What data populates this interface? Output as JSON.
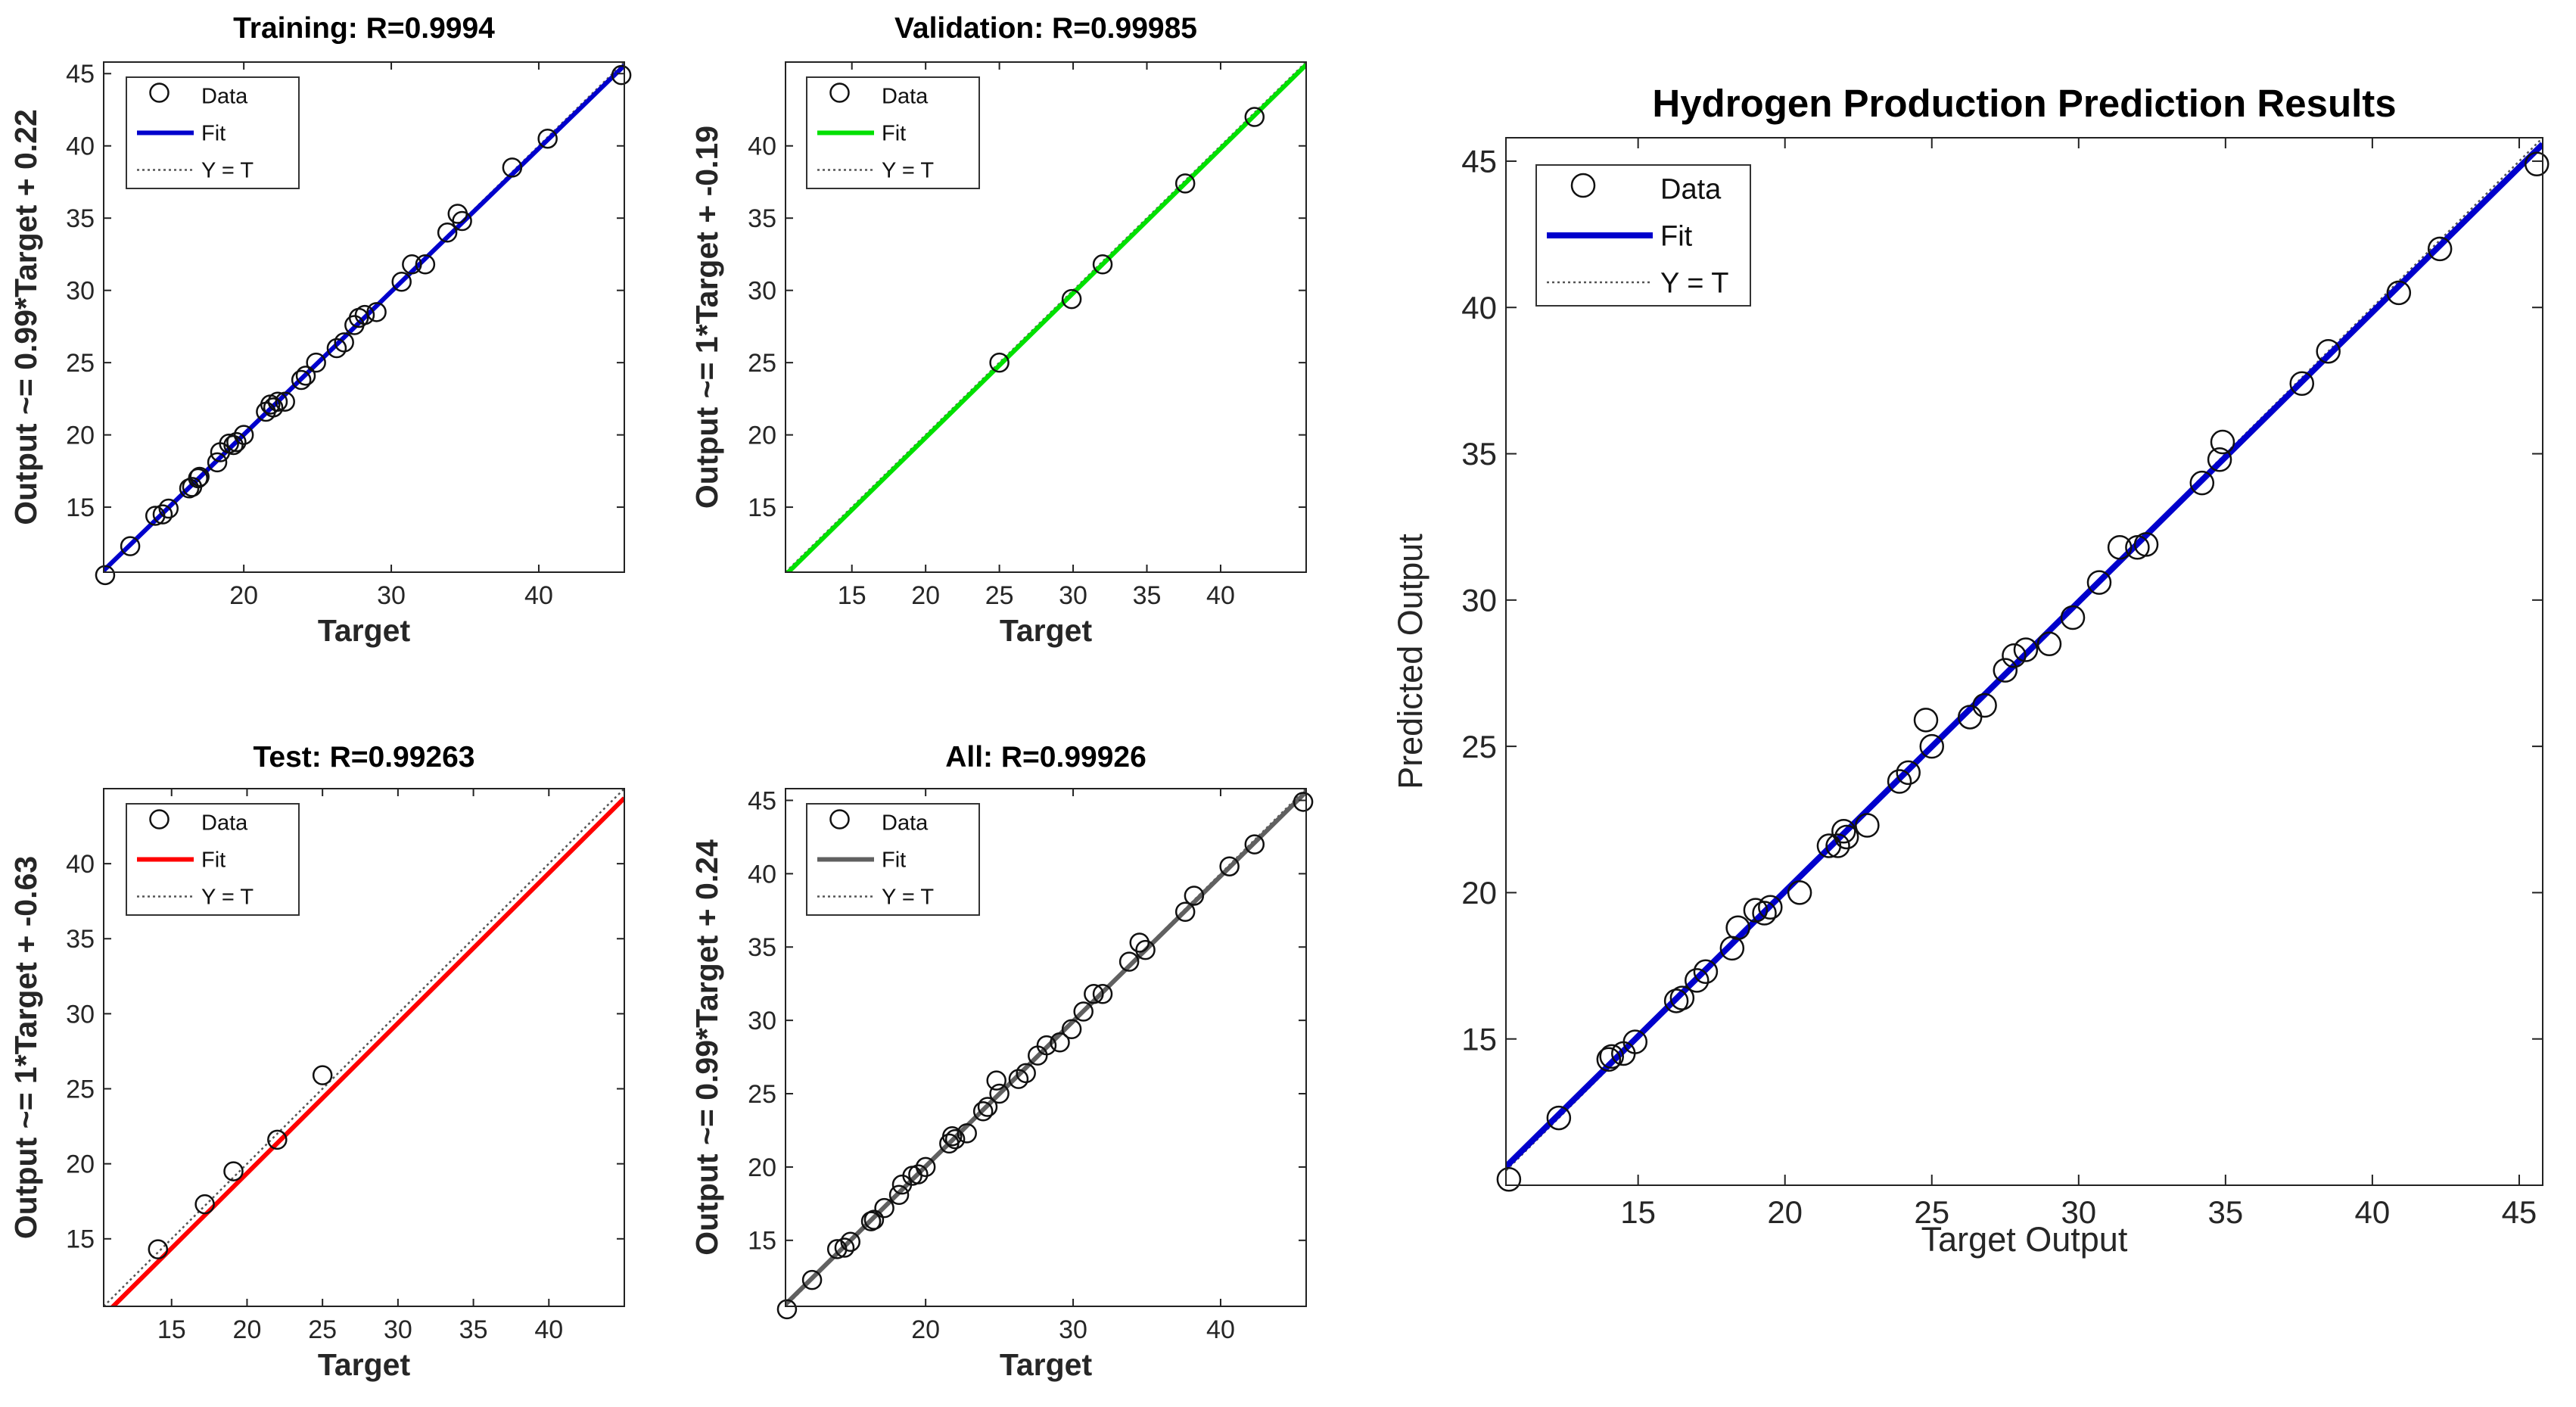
{
  "chart_data": [
    {
      "type": "scatter",
      "title": "Training: R=0.9994",
      "xlabel": "Target",
      "ylabel": "Output ~= 0.99*Target + 0.22",
      "xlim": [
        10.5,
        45.8
      ],
      "ylim": [
        10.5,
        45.8
      ],
      "xticks": [
        20,
        30,
        40
      ],
      "yticks": [
        15,
        20,
        25,
        30,
        35,
        40,
        45
      ],
      "fit": {
        "slope": 0.99,
        "intercept": 0.22,
        "color": "#0000cc"
      },
      "legend": {
        "data": "Data",
        "fit": "Fit",
        "identity": "Y = T"
      },
      "x": [
        10.6,
        12.3,
        14.0,
        14.5,
        14.9,
        16.3,
        16.5,
        16.9,
        17.0,
        18.2,
        18.4,
        19.0,
        19.3,
        19.5,
        20.0,
        21.5,
        21.8,
        22.0,
        22.3,
        22.8,
        23.9,
        24.2,
        24.9,
        26.3,
        26.8,
        27.5,
        27.8,
        28.2,
        29.0,
        30.7,
        31.4,
        32.3,
        33.8,
        34.5,
        34.8,
        38.2,
        40.6,
        45.6
      ],
      "y": [
        10.3,
        12.3,
        14.4,
        14.5,
        14.9,
        16.3,
        16.4,
        17.0,
        17.1,
        18.1,
        18.8,
        19.4,
        19.3,
        19.5,
        20.0,
        21.6,
        22.1,
        21.9,
        22.3,
        22.3,
        23.8,
        24.1,
        25.0,
        26.0,
        26.4,
        27.6,
        28.1,
        28.3,
        28.5,
        30.6,
        31.8,
        31.8,
        34.0,
        35.3,
        34.8,
        38.5,
        40.5,
        44.9
      ]
    },
    {
      "type": "scatter",
      "title": "Validation: R=0.99985",
      "xlabel": "Target",
      "ylabel": "Output ~= 1*Target + -0.19",
      "xlim": [
        10.5,
        45.8
      ],
      "ylim": [
        10.5,
        45.8
      ],
      "xticks": [
        15,
        20,
        25,
        30,
        35,
        40
      ],
      "yticks": [
        15,
        20,
        25,
        30,
        35,
        40
      ],
      "fit": {
        "slope": 1.0,
        "intercept": -0.19,
        "color": "#00e000"
      },
      "legend": {
        "data": "Data",
        "fit": "Fit",
        "identity": "Y = T"
      },
      "x": [
        25.0,
        29.9,
        32.0,
        37.6,
        42.3
      ],
      "y": [
        25.0,
        29.4,
        31.8,
        37.4,
        42.0
      ]
    },
    {
      "type": "scatter",
      "title": "Test: R=0.99263",
      "xlabel": "Target",
      "ylabel": "Output ~= 1*Target + -0.63",
      "xlim": [
        10.5,
        45.0
      ],
      "ylim": [
        10.5,
        45.0
      ],
      "xticks": [
        15,
        20,
        25,
        30,
        35,
        40
      ],
      "yticks": [
        15,
        20,
        25,
        30,
        35,
        40
      ],
      "fit": {
        "slope": 1.0,
        "intercept": -0.63,
        "color": "#ff0000"
      },
      "legend": {
        "data": "Data",
        "fit": "Fit",
        "identity": "Y = T"
      },
      "x": [
        14.1,
        17.2,
        19.1,
        22.0,
        25.0
      ],
      "y": [
        14.3,
        17.3,
        19.5,
        21.6,
        25.9
      ]
    },
    {
      "type": "scatter",
      "title": "All: R=0.99926",
      "xlabel": "Target",
      "ylabel": "Output ~= 0.99*Target + 0.24",
      "xlim": [
        10.5,
        45.8
      ],
      "ylim": [
        10.5,
        45.8
      ],
      "xticks": [
        20,
        30,
        40
      ],
      "yticks": [
        15,
        20,
        25,
        30,
        35,
        40,
        45
      ],
      "fit": {
        "slope": 0.99,
        "intercept": 0.24,
        "color": "#606060"
      },
      "legend": {
        "data": "Data",
        "fit": "Fit",
        "identity": "Y = T"
      },
      "x": [
        10.6,
        12.3,
        14.0,
        14.5,
        14.9,
        16.3,
        16.5,
        17.2,
        18.2,
        18.4,
        19.1,
        19.5,
        20.0,
        21.6,
        21.8,
        22.0,
        22.8,
        23.9,
        24.2,
        24.8,
        25.0,
        26.3,
        26.8,
        27.6,
        28.2,
        29.1,
        29.9,
        30.7,
        31.4,
        32.0,
        33.8,
        34.5,
        34.9,
        37.6,
        38.2,
        40.6,
        42.3,
        45.6
      ],
      "y": [
        10.3,
        12.3,
        14.4,
        14.5,
        14.9,
        16.3,
        16.4,
        17.2,
        18.1,
        18.8,
        19.4,
        19.5,
        20.0,
        21.6,
        22.1,
        21.9,
        22.3,
        23.8,
        24.1,
        25.9,
        25.0,
        26.0,
        26.4,
        27.6,
        28.3,
        28.5,
        29.4,
        30.6,
        31.8,
        31.8,
        34.0,
        35.3,
        34.8,
        37.4,
        38.5,
        40.5,
        42.0,
        44.9
      ]
    },
    {
      "type": "scatter",
      "title": "Hydrogen Production Prediction Results",
      "xlabel": "Target Output",
      "ylabel": "Predicted Output",
      "xlim": [
        10.5,
        45.8
      ],
      "ylim": [
        10.0,
        45.8
      ],
      "xticks": [
        15,
        20,
        25,
        30,
        35,
        40,
        45
      ],
      "yticks": [
        15,
        20,
        25,
        30,
        35,
        40,
        45
      ],
      "fit": {
        "slope": 0.99,
        "intercept": 0.24,
        "color": "#0000cc"
      },
      "legend": {
        "data": "Data",
        "fit": "Fit",
        "identity": "Y = T"
      },
      "x": [
        10.6,
        12.3,
        14.0,
        14.1,
        14.5,
        14.9,
        16.3,
        16.5,
        17.0,
        17.3,
        18.2,
        18.4,
        19.0,
        19.3,
        19.5,
        20.5,
        21.5,
        21.8,
        22.0,
        22.1,
        22.8,
        23.9,
        24.2,
        24.8,
        25.0,
        26.3,
        26.8,
        27.5,
        27.8,
        28.2,
        29.0,
        29.8,
        30.7,
        31.4,
        32.0,
        32.3,
        34.2,
        34.8,
        34.9,
        37.6,
        38.5,
        40.9,
        42.3,
        45.6
      ],
      "y": [
        10.2,
        12.3,
        14.3,
        14.4,
        14.5,
        14.9,
        16.3,
        16.4,
        17.0,
        17.3,
        18.1,
        18.8,
        19.4,
        19.3,
        19.5,
        20.0,
        21.6,
        21.6,
        22.1,
        21.9,
        22.3,
        23.8,
        24.1,
        25.9,
        25.0,
        26.0,
        26.4,
        27.6,
        28.1,
        28.3,
        28.5,
        29.4,
        30.6,
        31.8,
        31.8,
        31.9,
        34.0,
        34.8,
        35.4,
        37.4,
        38.5,
        40.5,
        42.0,
        44.9
      ]
    }
  ]
}
